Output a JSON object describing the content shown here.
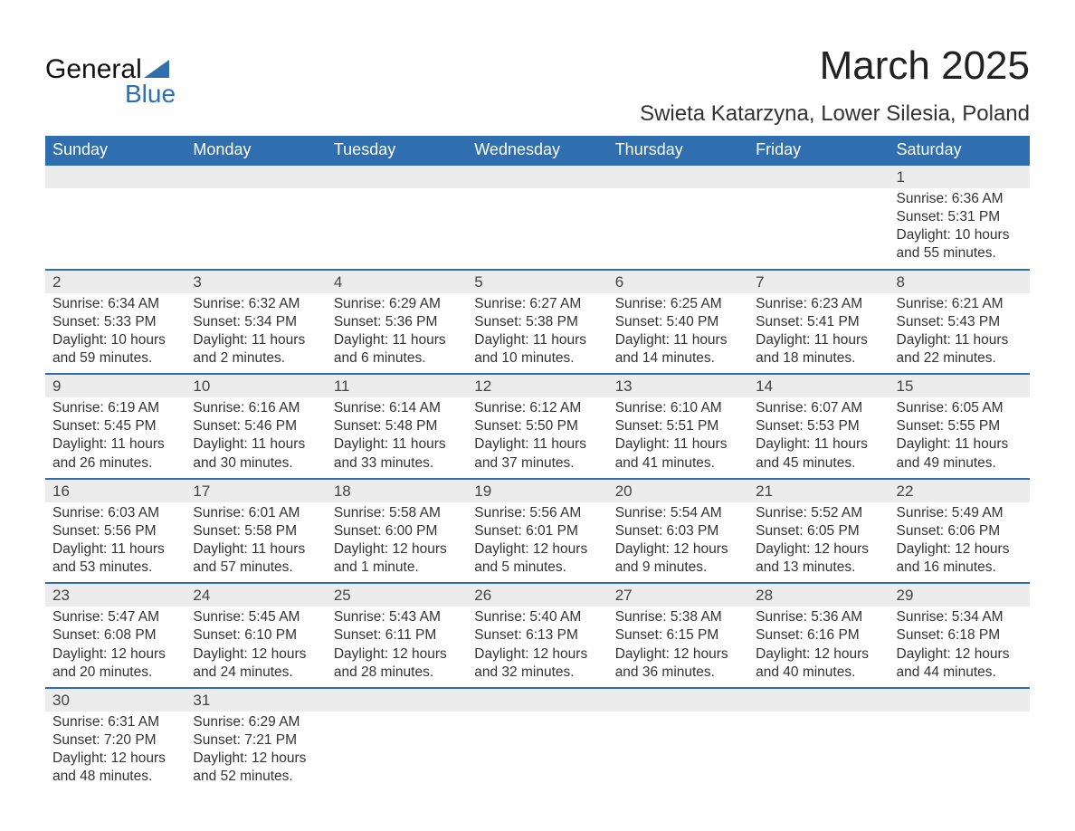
{
  "logo": {
    "text1": "General",
    "text2": "Blue"
  },
  "header": {
    "month_title": "March 2025",
    "location": "Swieta Katarzyna, Lower Silesia, Poland"
  },
  "colors": {
    "header_bg": "#2f6fb0",
    "header_fg": "#ffffff",
    "band_bg": "#ececec",
    "border": "#2f6fb0",
    "text": "#333333",
    "page_bg": "#ffffff"
  },
  "weekdays": [
    "Sunday",
    "Monday",
    "Tuesday",
    "Wednesday",
    "Thursday",
    "Friday",
    "Saturday"
  ],
  "weeks": [
    {
      "days": [
        "",
        "",
        "",
        "",
        "",
        "",
        "1"
      ],
      "sunrise": [
        "",
        "",
        "",
        "",
        "",
        "",
        "Sunrise: 6:36 AM"
      ],
      "sunset": [
        "",
        "",
        "",
        "",
        "",
        "",
        "Sunset: 5:31 PM"
      ],
      "day1": [
        "",
        "",
        "",
        "",
        "",
        "",
        "Daylight: 10 hours"
      ],
      "day2": [
        "",
        "",
        "",
        "",
        "",
        "",
        "and 55 minutes."
      ]
    },
    {
      "days": [
        "2",
        "3",
        "4",
        "5",
        "6",
        "7",
        "8"
      ],
      "sunrise": [
        "Sunrise: 6:34 AM",
        "Sunrise: 6:32 AM",
        "Sunrise: 6:29 AM",
        "Sunrise: 6:27 AM",
        "Sunrise: 6:25 AM",
        "Sunrise: 6:23 AM",
        "Sunrise: 6:21 AM"
      ],
      "sunset": [
        "Sunset: 5:33 PM",
        "Sunset: 5:34 PM",
        "Sunset: 5:36 PM",
        "Sunset: 5:38 PM",
        "Sunset: 5:40 PM",
        "Sunset: 5:41 PM",
        "Sunset: 5:43 PM"
      ],
      "day1": [
        "Daylight: 10 hours",
        "Daylight: 11 hours",
        "Daylight: 11 hours",
        "Daylight: 11 hours",
        "Daylight: 11 hours",
        "Daylight: 11 hours",
        "Daylight: 11 hours"
      ],
      "day2": [
        "and 59 minutes.",
        "and 2 minutes.",
        "and 6 minutes.",
        "and 10 minutes.",
        "and 14 minutes.",
        "and 18 minutes.",
        "and 22 minutes."
      ]
    },
    {
      "days": [
        "9",
        "10",
        "11",
        "12",
        "13",
        "14",
        "15"
      ],
      "sunrise": [
        "Sunrise: 6:19 AM",
        "Sunrise: 6:16 AM",
        "Sunrise: 6:14 AM",
        "Sunrise: 6:12 AM",
        "Sunrise: 6:10 AM",
        "Sunrise: 6:07 AM",
        "Sunrise: 6:05 AM"
      ],
      "sunset": [
        "Sunset: 5:45 PM",
        "Sunset: 5:46 PM",
        "Sunset: 5:48 PM",
        "Sunset: 5:50 PM",
        "Sunset: 5:51 PM",
        "Sunset: 5:53 PM",
        "Sunset: 5:55 PM"
      ],
      "day1": [
        "Daylight: 11 hours",
        "Daylight: 11 hours",
        "Daylight: 11 hours",
        "Daylight: 11 hours",
        "Daylight: 11 hours",
        "Daylight: 11 hours",
        "Daylight: 11 hours"
      ],
      "day2": [
        "and 26 minutes.",
        "and 30 minutes.",
        "and 33 minutes.",
        "and 37 minutes.",
        "and 41 minutes.",
        "and 45 minutes.",
        "and 49 minutes."
      ]
    },
    {
      "days": [
        "16",
        "17",
        "18",
        "19",
        "20",
        "21",
        "22"
      ],
      "sunrise": [
        "Sunrise: 6:03 AM",
        "Sunrise: 6:01 AM",
        "Sunrise: 5:58 AM",
        "Sunrise: 5:56 AM",
        "Sunrise: 5:54 AM",
        "Sunrise: 5:52 AM",
        "Sunrise: 5:49 AM"
      ],
      "sunset": [
        "Sunset: 5:56 PM",
        "Sunset: 5:58 PM",
        "Sunset: 6:00 PM",
        "Sunset: 6:01 PM",
        "Sunset: 6:03 PM",
        "Sunset: 6:05 PM",
        "Sunset: 6:06 PM"
      ],
      "day1": [
        "Daylight: 11 hours",
        "Daylight: 11 hours",
        "Daylight: 12 hours",
        "Daylight: 12 hours",
        "Daylight: 12 hours",
        "Daylight: 12 hours",
        "Daylight: 12 hours"
      ],
      "day2": [
        "and 53 minutes.",
        "and 57 minutes.",
        "and 1 minute.",
        "and 5 minutes.",
        "and 9 minutes.",
        "and 13 minutes.",
        "and 16 minutes."
      ]
    },
    {
      "days": [
        "23",
        "24",
        "25",
        "26",
        "27",
        "28",
        "29"
      ],
      "sunrise": [
        "Sunrise: 5:47 AM",
        "Sunrise: 5:45 AM",
        "Sunrise: 5:43 AM",
        "Sunrise: 5:40 AM",
        "Sunrise: 5:38 AM",
        "Sunrise: 5:36 AM",
        "Sunrise: 5:34 AM"
      ],
      "sunset": [
        "Sunset: 6:08 PM",
        "Sunset: 6:10 PM",
        "Sunset: 6:11 PM",
        "Sunset: 6:13 PM",
        "Sunset: 6:15 PM",
        "Sunset: 6:16 PM",
        "Sunset: 6:18 PM"
      ],
      "day1": [
        "Daylight: 12 hours",
        "Daylight: 12 hours",
        "Daylight: 12 hours",
        "Daylight: 12 hours",
        "Daylight: 12 hours",
        "Daylight: 12 hours",
        "Daylight: 12 hours"
      ],
      "day2": [
        "and 20 minutes.",
        "and 24 minutes.",
        "and 28 minutes.",
        "and 32 minutes.",
        "and 36 minutes.",
        "and 40 minutes.",
        "and 44 minutes."
      ]
    },
    {
      "days": [
        "30",
        "31",
        "",
        "",
        "",
        "",
        ""
      ],
      "sunrise": [
        "Sunrise: 6:31 AM",
        "Sunrise: 6:29 AM",
        "",
        "",
        "",
        "",
        ""
      ],
      "sunset": [
        "Sunset: 7:20 PM",
        "Sunset: 7:21 PM",
        "",
        "",
        "",
        "",
        ""
      ],
      "day1": [
        "Daylight: 12 hours",
        "Daylight: 12 hours",
        "",
        "",
        "",
        "",
        ""
      ],
      "day2": [
        "and 48 minutes.",
        "and 52 minutes.",
        "",
        "",
        "",
        "",
        ""
      ]
    }
  ]
}
